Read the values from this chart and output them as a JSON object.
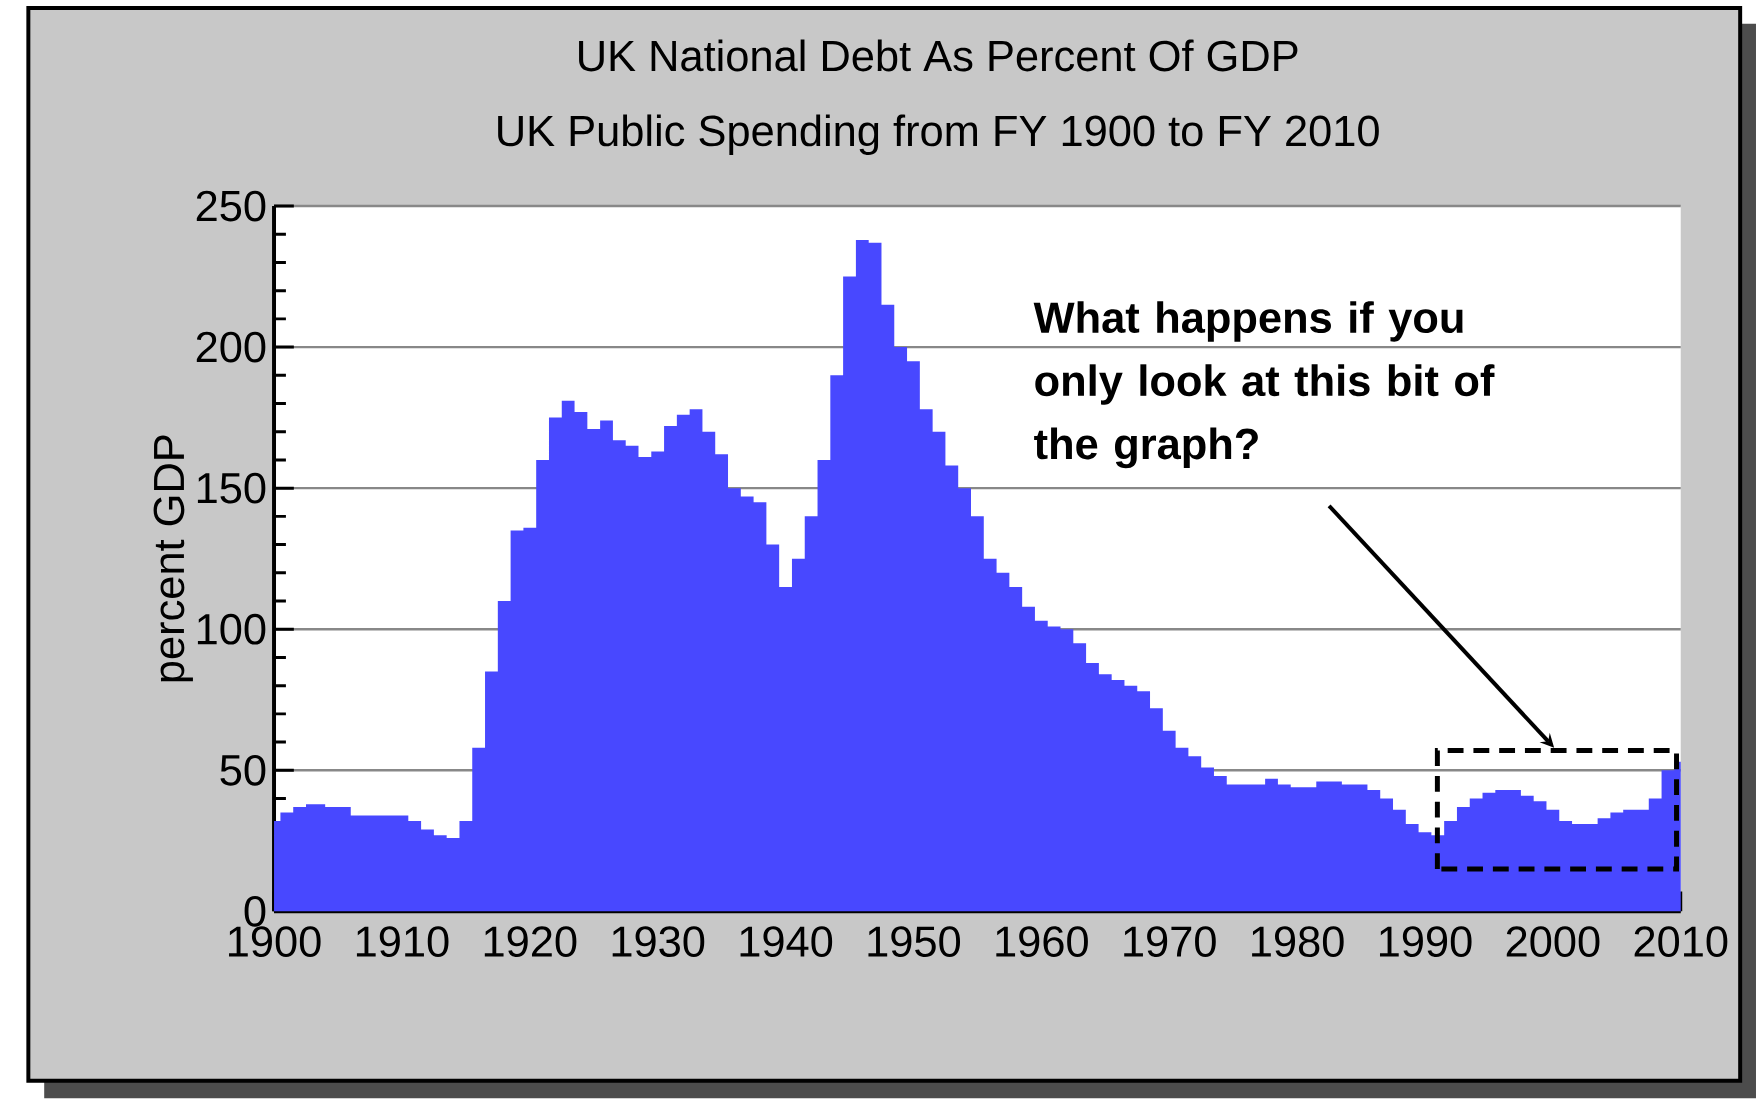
{
  "chart_data": {
    "type": "area",
    "title": "UK National Debt As Percent Of GDP",
    "subtitle": "UK Public Spending from FY 1900 to FY 2010",
    "ylabel": "percent GDP",
    "x": [
      1900,
      1901,
      1902,
      1903,
      1905,
      1907,
      1910,
      1911,
      1912,
      1913,
      1914,
      1915,
      1916,
      1917,
      1918,
      1919,
      1920,
      1921,
      1922,
      1923,
      1924,
      1925,
      1926,
      1927,
      1928,
      1929,
      1930,
      1931,
      1932,
      1933,
      1934,
      1935,
      1936,
      1937,
      1938,
      1939,
      1940,
      1941,
      1942,
      1943,
      1944,
      1945,
      1946,
      1947,
      1948,
      1949,
      1950,
      1951,
      1952,
      1953,
      1954,
      1955,
      1956,
      1957,
      1958,
      1959,
      1960,
      1961,
      1962,
      1963,
      1964,
      1965,
      1966,
      1967,
      1968,
      1969,
      1970,
      1971,
      1972,
      1973,
      1974,
      1975,
      1976,
      1977,
      1978,
      1979,
      1980,
      1981,
      1982,
      1983,
      1984,
      1985,
      1986,
      1987,
      1988,
      1989,
      1990,
      1991,
      1992,
      1993,
      1994,
      1995,
      1996,
      1997,
      1998,
      1999,
      2000,
      2001,
      2002,
      2003,
      2004,
      2005,
      2006,
      2007,
      2008,
      2009,
      2010
    ],
    "values": [
      32,
      35,
      37,
      38,
      37,
      34,
      34,
      32,
      29,
      27,
      26,
      32,
      58,
      85,
      110,
      135,
      136,
      160,
      175,
      181,
      177,
      171,
      174,
      167,
      165,
      161,
      163,
      172,
      176,
      178,
      170,
      162,
      150,
      147,
      145,
      130,
      115,
      125,
      140,
      160,
      190,
      225,
      238,
      237,
      215,
      200,
      195,
      178,
      170,
      158,
      150,
      140,
      125,
      120,
      115,
      108,
      103,
      101,
      100,
      95,
      88,
      84,
      82,
      80,
      78,
      72,
      64,
      58,
      55,
      51,
      48,
      45,
      45,
      45,
      47,
      45,
      44,
      44,
      46,
      46,
      45,
      45,
      43,
      40,
      36,
      31,
      28,
      27,
      32,
      37,
      40,
      42,
      43,
      43,
      41,
      39,
      36,
      32,
      31,
      31,
      33,
      35,
      36,
      36,
      40,
      50,
      53
    ],
    "color": "#4848ff",
    "xlim": [
      1900,
      2010
    ],
    "ylim": [
      0,
      250
    ],
    "xticks": [
      1900,
      1910,
      1920,
      1930,
      1940,
      1950,
      1960,
      1970,
      1980,
      1990,
      2000,
      2010
    ],
    "yticks": [
      0,
      {
        "value": 10,
        "label": null
      },
      {
        "value": 20,
        "label": null
      },
      {
        "value": 30,
        "label": null
      },
      {
        "value": 40,
        "label": null
      },
      50,
      {
        "value": 60,
        "label": null
      },
      {
        "value": 70,
        "label": null
      },
      {
        "value": 80,
        "label": null
      },
      {
        "value": 90,
        "label": null
      },
      100,
      {
        "value": 110,
        "label": null
      },
      {
        "value": 120,
        "label": null
      },
      {
        "value": 130,
        "label": null
      },
      {
        "value": 140,
        "label": null
      },
      150,
      {
        "value": 160,
        "label": null
      },
      {
        "value": 170,
        "label": null
      },
      {
        "value": 180,
        "label": null
      },
      {
        "value": 190,
        "label": null
      },
      200,
      {
        "value": 210,
        "label": null
      },
      {
        "value": 220,
        "label": null
      },
      {
        "value": 230,
        "label": null
      },
      {
        "value": 240,
        "label": null
      },
      250
    ],
    "grid": "y",
    "annotations": [
      "What happens if you only look at this bit of the graph?"
    ]
  }
}
